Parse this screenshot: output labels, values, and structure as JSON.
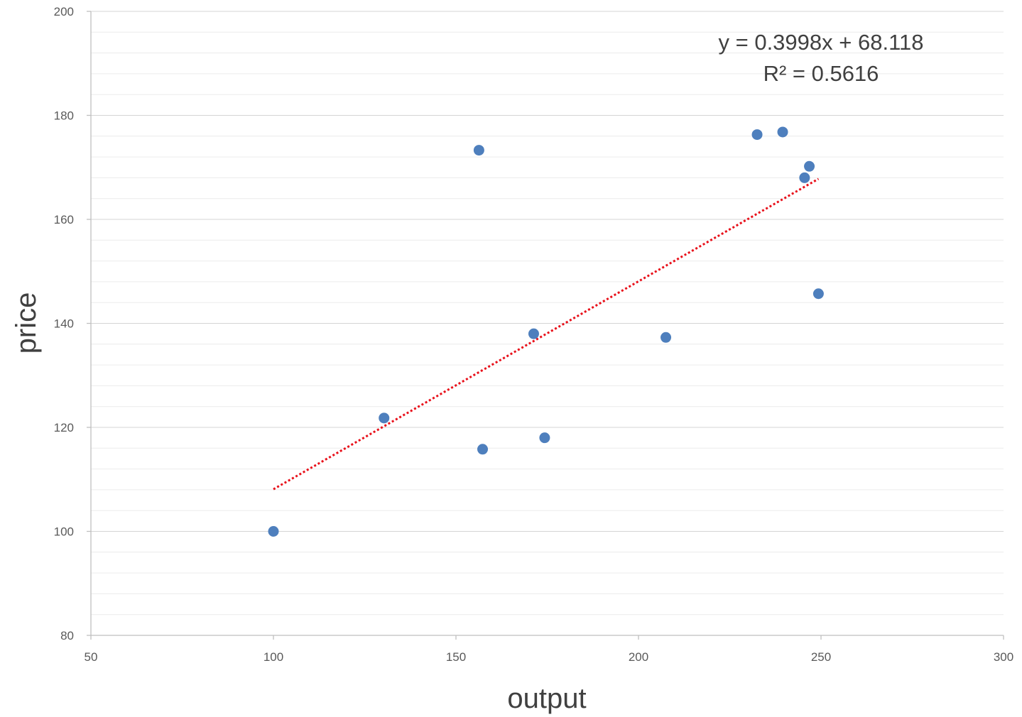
{
  "chart_data": {
    "type": "scatter",
    "title": "",
    "xlabel": "output",
    "ylabel": "price",
    "xlim": [
      50,
      300
    ],
    "ylim": [
      80,
      200
    ],
    "x_ticks": [
      50,
      100,
      150,
      200,
      250,
      300
    ],
    "y_ticks": [
      80,
      100,
      120,
      140,
      160,
      180,
      200
    ],
    "x_tick_labels": [
      "50",
      "100",
      "150",
      "200",
      "250",
      "300"
    ],
    "y_tick_labels": [
      "80",
      "100",
      "120",
      "140",
      "160",
      "180",
      "200"
    ],
    "y_minor_step": 4,
    "grid": true,
    "legend": "none",
    "series": [
      {
        "x": [
          100,
          130.3,
          156.3,
          157.3,
          171.3,
          174.3,
          207.5,
          232.5,
          239.5,
          245.5,
          246.8,
          249.3
        ],
        "y": [
          100,
          121.8,
          173.3,
          115.8,
          138.0,
          118.0,
          137.3,
          176.3,
          176.8,
          168.0,
          170.2,
          145.7
        ],
        "color": "#4e7fbd"
      }
    ],
    "trendline": {
      "type": "linear",
      "slope": 0.3998,
      "intercept": 68.118,
      "x_range": [
        100,
        249.3
      ],
      "color": "#e8101a",
      "style": "dotted",
      "equation_label": "y = 0.3998x + 68.118",
      "r2_label": "R² = 0.5616"
    }
  }
}
